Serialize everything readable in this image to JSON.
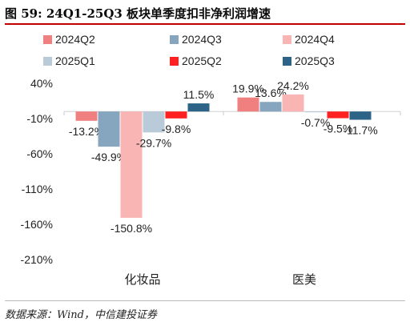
{
  "header": {
    "title": "图 59: 24Q1-25Q3 板块单季度扣非净利润增速"
  },
  "source": "数据来源：Wind，中信建投证券",
  "chart_data": {
    "type": "bar",
    "categories": [
      "化妆品",
      "医美"
    ],
    "series": [
      {
        "name": "2024Q2",
        "color": "#f08080",
        "values": [
          -13.2,
          19.9
        ],
        "labels": [
          "-13.2%",
          "19.9%"
        ]
      },
      {
        "name": "2024Q3",
        "color": "#86a6bf",
        "values": [
          -49.9,
          13.6
        ],
        "labels": [
          "-49.9%",
          "13.6%"
        ]
      },
      {
        "name": "2024Q4",
        "color": "#f9b4b4",
        "values": [
          -150.8,
          24.2
        ],
        "labels": [
          "-150.8%",
          "24.2%"
        ]
      },
      {
        "name": "2025Q1",
        "color": "#b9cad9",
        "values": [
          -29.7,
          -0.7
        ],
        "labels": [
          "-29.7%",
          "-0.7%"
        ]
      },
      {
        "name": "2025Q2",
        "color": "#ff2121",
        "values": [
          -9.8,
          -9.5
        ],
        "labels": [
          "-9.8%",
          "-9.5%"
        ]
      },
      {
        "name": "2025Q3",
        "color": "#2e6388",
        "values": [
          11.5,
          -11.7
        ],
        "labels": [
          "11.5%",
          "-11.7%"
        ]
      }
    ],
    "ylim": [
      -210,
      40
    ],
    "yticks": [
      40,
      -10,
      -60,
      -110,
      -160,
      -210
    ],
    "ytick_labels": [
      "40%",
      "-10%",
      "-60%",
      "-110%",
      "-160%",
      "-210%"
    ],
    "legend_position": "top",
    "grid": false
  }
}
